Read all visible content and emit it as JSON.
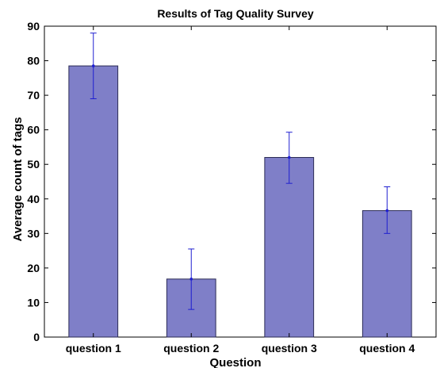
{
  "chart_data": {
    "type": "bar",
    "title": "Results of Tag Quality Survey",
    "xlabel": "Question",
    "ylabel": "Average count of tags",
    "categories": [
      "question 1",
      "question 2",
      "question 3",
      "question 4"
    ],
    "values": [
      78.5,
      16.8,
      52.0,
      36.6
    ],
    "error_low": [
      69.0,
      8.0,
      44.5,
      30.0
    ],
    "error_high": [
      88.0,
      25.5,
      59.3,
      43.5
    ],
    "ylim": [
      0,
      90
    ],
    "yticks": [
      0,
      10,
      20,
      30,
      40,
      50,
      60,
      70,
      80,
      90
    ],
    "grid": false,
    "colors": {
      "bar_fill": "#7f7fc8",
      "bar_stroke": "#2b2b55",
      "error_bar": "#1f1fd0",
      "axes": "#000000"
    }
  }
}
